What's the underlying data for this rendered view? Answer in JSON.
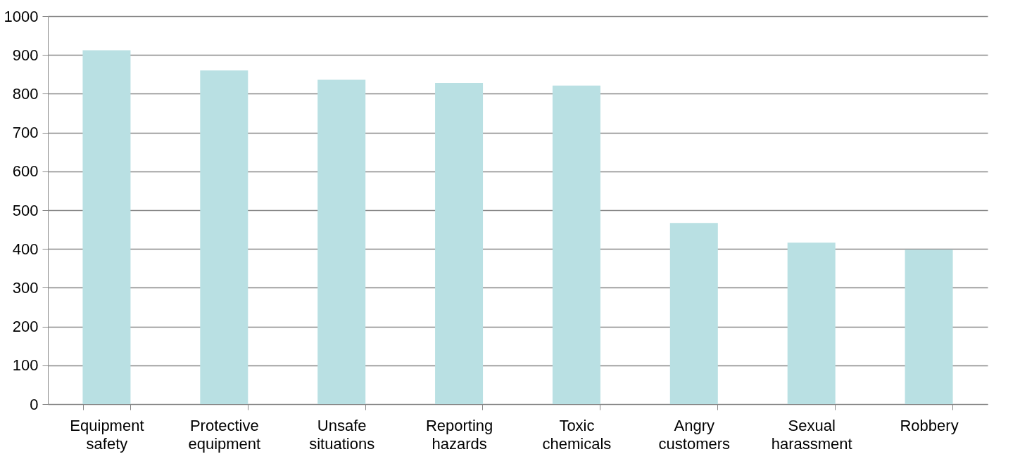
{
  "chart_data": {
    "type": "bar",
    "categories": [
      "Equipment safety",
      "Protective equipment",
      "Unsafe situations",
      "Reporting hazards",
      "Toxic chemicals",
      "Angry customers",
      "Sexual harassment",
      "Robbery"
    ],
    "values": [
      912,
      860,
      836,
      828,
      821,
      467,
      416,
      398
    ],
    "color": "#b9e0e3",
    "ylim": [
      0,
      1000
    ],
    "yticks": [
      0,
      100,
      200,
      300,
      400,
      500,
      600,
      700,
      800,
      900,
      1000
    ],
    "grid": "y"
  }
}
